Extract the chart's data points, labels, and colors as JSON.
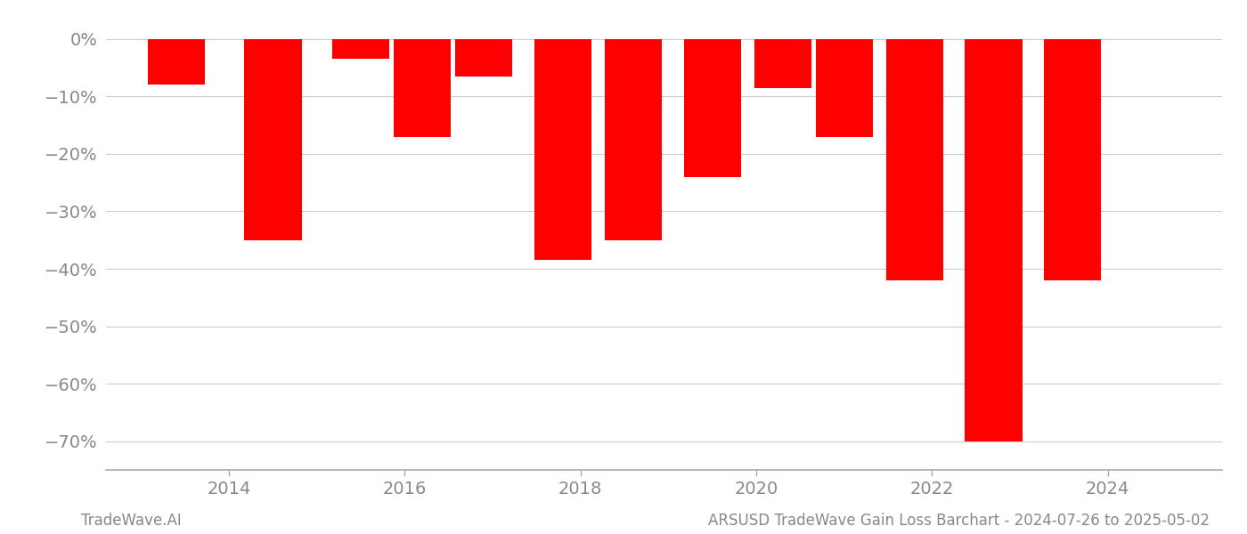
{
  "bar_centers": [
    2013.4,
    2014.5,
    2015.5,
    2016.2,
    2016.9,
    2017.8,
    2018.6,
    2019.5,
    2020.3,
    2021.0,
    2021.8,
    2022.7,
    2023.6
  ],
  "values": [
    -8.0,
    -35.0,
    -3.5,
    -17.0,
    -6.5,
    -38.5,
    -35.0,
    -24.0,
    -8.5,
    -17.0,
    -42.0,
    -70.0,
    -42.0
  ],
  "bar_color": "#ff0000",
  "bar_width": 0.65,
  "xlim": [
    2012.6,
    2025.3
  ],
  "ylim": [
    -75,
    4
  ],
  "yticks": [
    0,
    -10,
    -20,
    -30,
    -40,
    -50,
    -60,
    -70
  ],
  "ytick_labels": [
    "0%",
    "−10%",
    "−20%",
    "−30%",
    "−40%",
    "−50%",
    "−60%",
    "−70%"
  ],
  "xticks": [
    2014,
    2016,
    2018,
    2020,
    2022,
    2024
  ],
  "title": "ARSUSD TradeWave Gain Loss Barchart - 2024-07-26 to 2025-05-02",
  "footnote_left": "TradeWave.AI",
  "grid_color": "#cccccc",
  "axis_color": "#aaaaaa",
  "text_color": "#888888",
  "background_color": "#ffffff",
  "tick_labelsize": 14,
  "footnote_fontsize": 12
}
